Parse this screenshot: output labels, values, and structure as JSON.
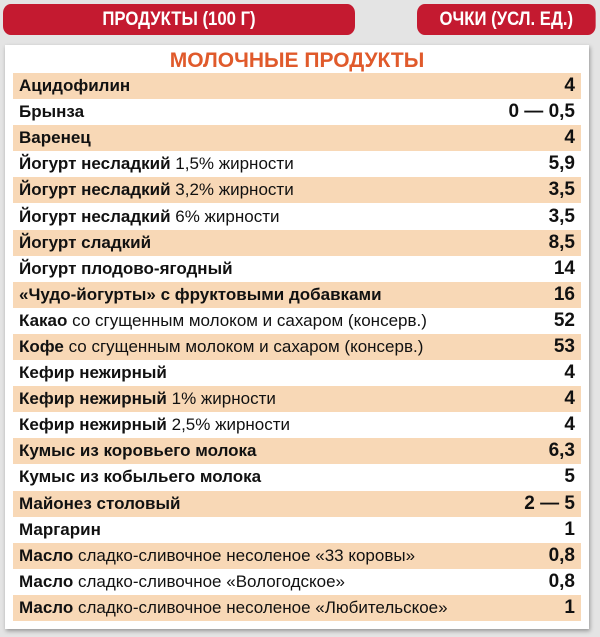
{
  "header": {
    "products": "ПРОДУКТЫ (100 Г)",
    "points": "ОЧКИ (УСЛ. ЕД.)"
  },
  "section_title": "МОЛОЧНЫЕ ПРОДУКТЫ",
  "colors": {
    "header": "#c41a30",
    "title": "#e05a2b",
    "band": "#f8d8b6"
  },
  "rows": [
    {
      "name": "Ацидофилин",
      "detail": "",
      "value": "4"
    },
    {
      "name": "Брынза",
      "detail": "",
      "value": "0 — 0,5"
    },
    {
      "name": "Варенец",
      "detail": "",
      "value": "4"
    },
    {
      "name": "Йогурт несладкий",
      "detail": "1,5% жирности",
      "value": "5,9"
    },
    {
      "name": "Йогурт несладкий",
      "detail": "3,2% жирности",
      "value": "3,5"
    },
    {
      "name": "Йогурт несладкий",
      "detail": "6% жирности",
      "value": "3,5"
    },
    {
      "name": "Йогурт сладкий",
      "detail": "",
      "value": "8,5"
    },
    {
      "name": "Йогурт плодово-ягодный",
      "detail": "",
      "value": "14"
    },
    {
      "name": "«Чудо-йогурты» с фруктовыми добавками",
      "detail": "",
      "value": "16"
    },
    {
      "name": "Какао",
      "detail": "со сгущенным молоком и сахаром (консерв.)",
      "value": "52"
    },
    {
      "name": "Кофе",
      "detail": "со сгущенным молоком и сахаром (консерв.)",
      "value": "53"
    },
    {
      "name": "Кефир нежирный",
      "detail": "",
      "value": "4"
    },
    {
      "name": "Кефир нежирный",
      "detail": "1% жирности",
      "value": "4"
    },
    {
      "name": "Кефир нежирный",
      "detail": "2,5% жирности",
      "value": "4"
    },
    {
      "name": "Кумыс из коровьего молока",
      "detail": "",
      "value": "6,3"
    },
    {
      "name": "Кумыс из кобыльего молока",
      "detail": "",
      "value": "5"
    },
    {
      "name": "Майонез столовый",
      "detail": "",
      "value": "2 — 5"
    },
    {
      "name": "Маргарин",
      "detail": "",
      "value": "1"
    },
    {
      "name": "Масло",
      "detail": "сладко-сливочное несоленое «33 коровы»",
      "value": "0,8"
    },
    {
      "name": "Масло",
      "detail": "сладко-сливочное «Вологодское»",
      "value": "0,8"
    },
    {
      "name": "Масло",
      "detail": "сладко-сливочное несоленое «Любительское»",
      "value": "1"
    }
  ]
}
